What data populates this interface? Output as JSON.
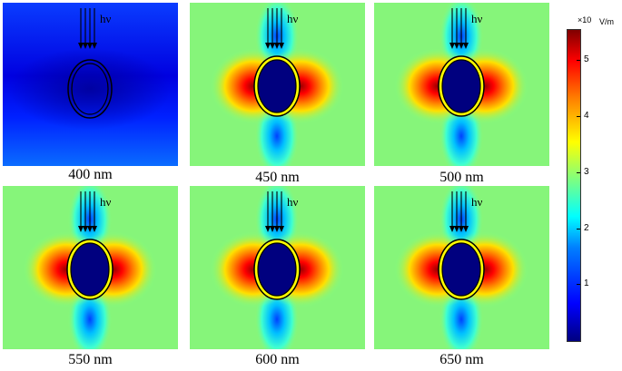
{
  "panels": [
    {
      "label": "400 nm",
      "mode": "weak"
    },
    {
      "label": "450 nm",
      "mode": "strong"
    },
    {
      "label": "500 nm",
      "mode": "strong"
    },
    {
      "label": "550 nm",
      "mode": "strong"
    },
    {
      "label": "600 nm",
      "mode": "strong"
    },
    {
      "label": "650 nm",
      "mode": "strong"
    }
  ],
  "incident_label": "hν",
  "colorbar": {
    "exponent": "×10",
    "unit": "V/m",
    "ticks": [
      "1",
      "2",
      "3",
      "4",
      "5"
    ]
  },
  "colors": {
    "background_field": "#7fff7f",
    "core": "#00007f",
    "hotspot": "#ff0000",
    "shell": "#ffff00"
  }
}
